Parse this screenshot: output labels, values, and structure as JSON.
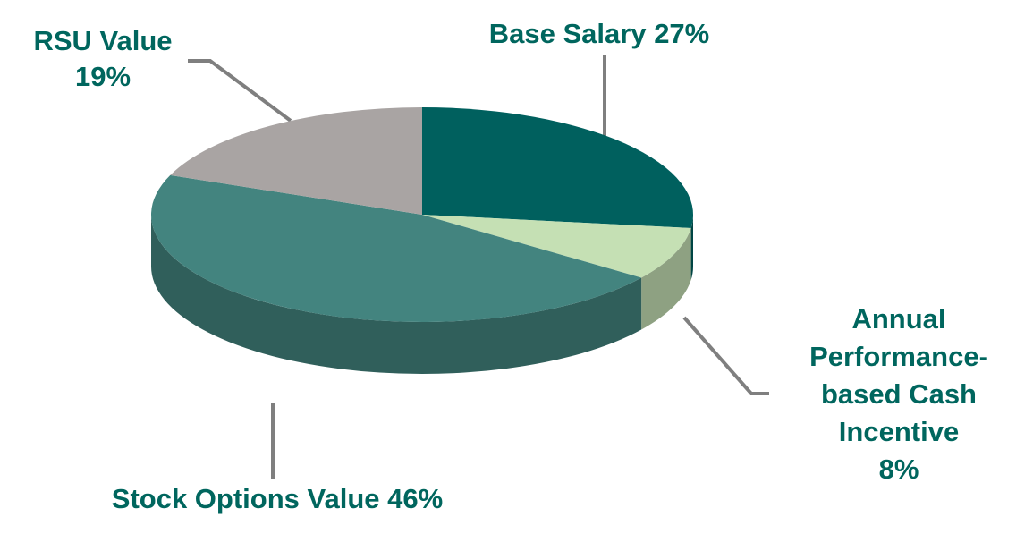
{
  "chart_data": {
    "type": "pie",
    "categories": [
      "Base Salary",
      "Annual Performance-based Cash Incentive",
      "Stock Options Value",
      "RSU Value"
    ],
    "values": [
      27,
      8,
      46,
      19
    ],
    "value_labels": [
      "27%",
      "8%",
      "46%",
      "19%"
    ],
    "colors": [
      "#00605e",
      "#c5e0b4",
      "#43847f",
      "#a9a4a3"
    ]
  }
}
